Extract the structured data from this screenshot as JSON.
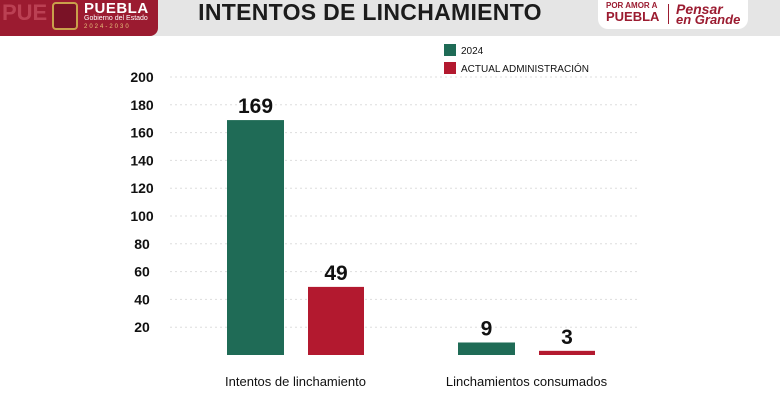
{
  "header": {
    "title": "INTENTOS DE LINCHAMIENTO",
    "left_logo": {
      "name": "PUEBLA",
      "subtitle": "Gobierno del Estado",
      "years": "2024-2030",
      "side_text": "PUE"
    },
    "right_logo": {
      "line1": "POR AMOR A",
      "line2": "PUEBLA",
      "line3": "Pensar",
      "line4": "en Grande"
    }
  },
  "colors": {
    "series_2024": "#1f6b56",
    "series_actual": "#b3192f",
    "grid": "#dddddd",
    "header_bg": "#e5e5e5",
    "brand": "#9b1b30"
  },
  "chart_data": {
    "type": "bar",
    "categories": [
      "Intentos de linchamiento",
      "Linchamientos consumados"
    ],
    "series": [
      {
        "name": "2024",
        "values": [
          169,
          9
        ]
      },
      {
        "name": "ACTUAL ADMINISTRACIÓN",
        "values": [
          49,
          3
        ]
      }
    ],
    "yticks": [
      20,
      40,
      60,
      80,
      100,
      120,
      140,
      160,
      180,
      200
    ],
    "ylim": [
      0,
      200
    ],
    "legend": "top-right",
    "grid": true
  }
}
